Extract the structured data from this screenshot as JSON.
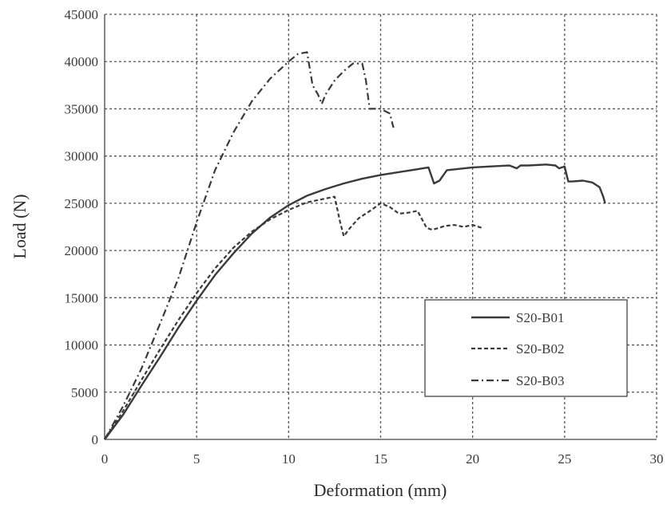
{
  "chart_data": {
    "type": "line",
    "title": "",
    "xlabel": "Deformation (mm)",
    "ylabel": "Load (N)",
    "xlim": [
      0,
      30
    ],
    "ylim": [
      0,
      45000
    ],
    "xticks": [
      0,
      5,
      10,
      15,
      20,
      25,
      30
    ],
    "yticks": [
      0,
      5000,
      10000,
      15000,
      20000,
      25000,
      30000,
      35000,
      40000,
      45000
    ],
    "grid": true,
    "legend_position": "bottom-right",
    "series": [
      {
        "name": "S20-B01",
        "style": "solid",
        "x": [
          0,
          1,
          2,
          3,
          4,
          5,
          6,
          7,
          8,
          9,
          10,
          11,
          12,
          13,
          14,
          15,
          16,
          17,
          17.6,
          17.9,
          18.2,
          18.6,
          20,
          21,
          22,
          22.4,
          22.6,
          23,
          24,
          24.5,
          24.7,
          25,
          25.2,
          25.4,
          26,
          26.5,
          26.9,
          27.1,
          27.2
        ],
        "y": [
          0,
          2600,
          5700,
          8700,
          11800,
          14700,
          17400,
          19700,
          21800,
          23500,
          24800,
          25800,
          26500,
          27100,
          27600,
          28000,
          28300,
          28600,
          28800,
          27100,
          27400,
          28500,
          28800,
          28900,
          29000,
          28700,
          29000,
          29000,
          29100,
          29000,
          28700,
          28900,
          27300,
          27300,
          27400,
          27200,
          26700,
          25700,
          25000
        ]
      },
      {
        "name": "S20-B02",
        "style": "dashed",
        "x": [
          0,
          1,
          2,
          3,
          4,
          5,
          6,
          7,
          8,
          9,
          10,
          11,
          12,
          12.5,
          12.8,
          13.0,
          13.3,
          13.8,
          14.5,
          15.0,
          15.5,
          16.0,
          16.5,
          17.0,
          17.5,
          17.8,
          18.0,
          18.5,
          19.0,
          19.5,
          20.0,
          20.5
        ],
        "y": [
          0,
          3000,
          6300,
          9500,
          12600,
          15500,
          18100,
          20300,
          22000,
          23300,
          24300,
          25100,
          25500,
          25700,
          23000,
          21500,
          22300,
          23400,
          24300,
          25000,
          24600,
          23900,
          24000,
          24200,
          22400,
          22200,
          22300,
          22600,
          22700,
          22500,
          22700,
          22400
        ]
      },
      {
        "name": "S20-B03",
        "style": "dash-dot",
        "x": [
          0,
          1,
          2,
          3,
          4,
          5,
          6,
          7,
          8,
          9,
          10,
          10.5,
          11.0,
          11.3,
          11.6,
          11.8,
          12.0,
          12.5,
          13.0,
          13.5,
          14.0,
          14.2,
          14.4,
          14.5,
          15.0,
          15.5,
          15.7
        ],
        "y": [
          0,
          3500,
          7500,
          12200,
          17000,
          23000,
          28500,
          32500,
          35800,
          38200,
          40000,
          40800,
          41000,
          37500,
          36500,
          35500,
          36500,
          38000,
          39000,
          39800,
          39800,
          38000,
          35000,
          35000,
          35000,
          34500,
          33000
        ]
      }
    ]
  }
}
